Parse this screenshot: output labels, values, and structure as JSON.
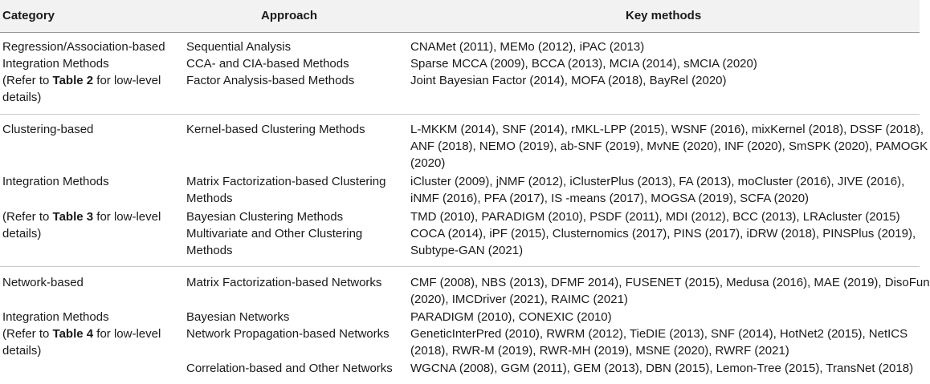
{
  "header": {
    "category": "Category",
    "approach": "Approach",
    "key_methods": "Key methods"
  },
  "groups": [
    {
      "category": {
        "line1": "Regression/Association-based",
        "line2": "Integration Methods",
        "ref_prefix": "(Refer to ",
        "ref_table": "Table 2",
        "ref_suffix": " for low-level",
        "line4": "details)"
      },
      "approaches": [
        {
          "name": [
            "Sequential Analysis"
          ],
          "methods": [
            "CNAMet (2011), MEMo (2012), iPAC (2013)"
          ]
        },
        {
          "name": [
            "CCA- and CIA-based Methods"
          ],
          "methods": [
            "Sparse MCCA (2009), BCCA (2013), MCIA (2014), sMCIA (2020)"
          ]
        },
        {
          "name": [
            "Factor Analysis-based Methods"
          ],
          "methods": [
            "Joint Bayesian Factor (2014), MOFA (2018), BayRel (2020)"
          ]
        }
      ]
    },
    {
      "category": {
        "line1": "Clustering-based",
        "line2": "Integration Methods",
        "ref_prefix": "(Refer to ",
        "ref_table": "Table 3",
        "ref_suffix": " for low-level",
        "line4": "details)"
      },
      "approaches": [
        {
          "name": [
            "Kernel-based Clustering Methods"
          ],
          "methods": [
            "L-MKKM (2014), SNF (2014), rMKL-LPP (2015), WSNF (2016), mixKernel (2018), DSSF (2018),",
            "ANF (2018), NEMO (2019), ab-SNF (2019), MvNE (2020), INF (2020), SmSPK (2020), PAMOGK",
            "(2020)"
          ]
        },
        {
          "name": [
            "Matrix Factorization-based Clustering",
            "Methods"
          ],
          "methods": [
            "iCluster (2009), jNMF (2012), iClusterPlus (2013), FA (2013), moCluster (2016), JIVE (2016),",
            "iNMF (2016), PFA (2017), IS -means (2017), MOGSA (2019), SCFA (2020)"
          ]
        },
        {
          "name": [
            "Bayesian Clustering Methods"
          ],
          "methods": [
            "TMD (2010), PARADIGM (2010), PSDF (2011), MDI (2012), BCC (2013), LRAcluster (2015)"
          ]
        },
        {
          "name": [
            "Multivariate and Other Clustering",
            "Methods"
          ],
          "methods": [
            "COCA (2014), iPF (2015), Clusternomics (2017), PINS (2017), iDRW (2018), PINSPlus (2019),",
            "Subtype-GAN (2021)"
          ]
        }
      ]
    },
    {
      "category": {
        "line1": "Network-based",
        "line2": "Integration Methods",
        "ref_prefix": "(Refer to ",
        "ref_table": "Table 4",
        "ref_suffix": " for low-level",
        "line4": "details)"
      },
      "approaches": [
        {
          "name": [
            "Matrix Factorization-based Networks"
          ],
          "methods": [
            "CMF (2008), NBS (2013), DFMF 2014), FUSENET (2015), Medusa (2016), MAE (2019), DisoFun",
            "(2020), IMCDriver (2021), RAIMC (2021)"
          ]
        },
        {
          "name": [
            "Bayesian Networks"
          ],
          "methods": [
            "PARADIGM (2010), CONEXIC (2010)"
          ]
        },
        {
          "name": [
            "Network Propagation-based Networks"
          ],
          "methods": [
            "GeneticInterPred (2010), RWRM (2012), TieDIE (2013), SNF (2014), HotNet2 (2015), NetICS",
            "(2018), RWR-M (2019), RWR-MH (2019), MSNE (2020), RWRF (2021)"
          ]
        },
        {
          "name": [
            "Correlation-based and Other Networks"
          ],
          "methods": [
            "WGCNA (2008), GGM (2011), GEM (2013), DBN (2015), Lemon-Tree (2015), TransNet (2018)"
          ]
        }
      ]
    }
  ]
}
